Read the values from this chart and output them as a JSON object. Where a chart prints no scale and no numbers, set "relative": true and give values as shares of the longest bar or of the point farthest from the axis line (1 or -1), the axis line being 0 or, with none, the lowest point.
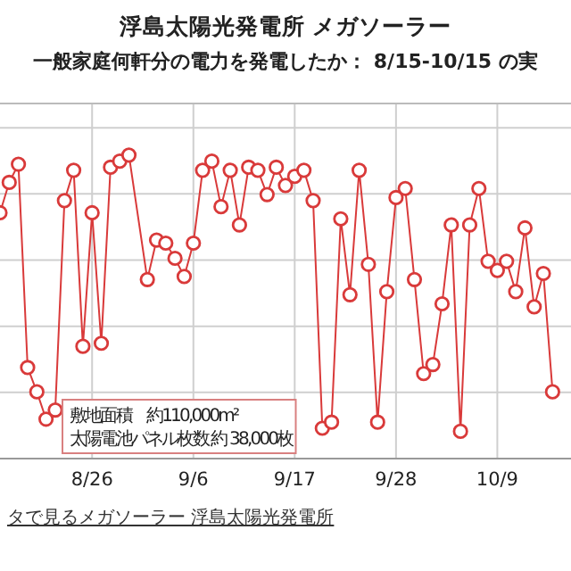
{
  "chart_data": {
    "type": "line",
    "title": "浮島太陽光発電所 メガソーラー",
    "subtitle": "一般家庭何軒分の電力を発電したか： 8/15-10/15 の実",
    "relative": true,
    "grid": true,
    "tick_labels": "x",
    "marker": "circle",
    "line_style": "solid",
    "xlim": [
      "--08-16",
      "--10-17"
    ],
    "xticks": [
      {
        "value": "--08-26",
        "label": "8/26"
      },
      {
        "value": "--09-06",
        "label": "9/6"
      },
      {
        "value": "--09-17",
        "label": "9/17"
      },
      {
        "value": "--09-28",
        "label": "9/28"
      },
      {
        "value": "--10-09",
        "label": "10/9"
      }
    ],
    "x": [
      "--08-16",
      "--08-17",
      "--08-18",
      "--08-19",
      "--08-20",
      "--08-21",
      "--08-22",
      "--08-23",
      "--08-24",
      "--08-25",
      "--08-26",
      "--08-27",
      "--08-28",
      "--08-29",
      "--08-30",
      "--09-01",
      "--09-02",
      "--09-03",
      "--09-04",
      "--09-05",
      "--09-06",
      "--09-07",
      "--09-08",
      "--09-09",
      "--09-10",
      "--09-11",
      "--09-12",
      "--09-13",
      "--09-14",
      "--09-15",
      "--09-16",
      "--09-17",
      "--09-18",
      "--09-19",
      "--09-20",
      "--09-21",
      "--09-22",
      "--09-23",
      "--09-24",
      "--09-25",
      "--09-26",
      "--09-27",
      "--09-28",
      "--09-29",
      "--09-30",
      "--10-01",
      "--10-02",
      "--10-03",
      "--10-04",
      "--10-05",
      "--10-06",
      "--10-07",
      "--10-08",
      "--10-09",
      "--10-10",
      "--10-11",
      "--10-12",
      "--10-13",
      "--10-14",
      "--10-15"
    ],
    "series": [
      {
        "color": "#d93a3a",
        "values": [
          0.81,
          0.91,
          0.97,
          0.3,
          0.22,
          0.13,
          0.16,
          0.85,
          0.95,
          0.37,
          0.81,
          0.38,
          0.96,
          0.98,
          1,
          0.59,
          0.72,
          0.71,
          0.66,
          0.6,
          0.71,
          0.95,
          0.98,
          0.83,
          0.95,
          0.77,
          0.96,
          0.95,
          0.87,
          0.96,
          0.9,
          0.93,
          0.95,
          0.85,
          0.1,
          0.12,
          0.79,
          0.54,
          0.95,
          0.64,
          0.12,
          0.55,
          0.86,
          0.89,
          0.59,
          0.28,
          0.31,
          0.51,
          0.77,
          0.09,
          0.77,
          0.89,
          0.65,
          0.62,
          0.65,
          0.55,
          0.76,
          0.5,
          0.61,
          0.22
        ]
      }
    ],
    "annotations": [
      "敷地面積　約110,000m²",
      "太陽電池パネル枚数 約 38,000枚",
      "タで見るメガソーラー 浮島太陽光発電所"
    ]
  }
}
